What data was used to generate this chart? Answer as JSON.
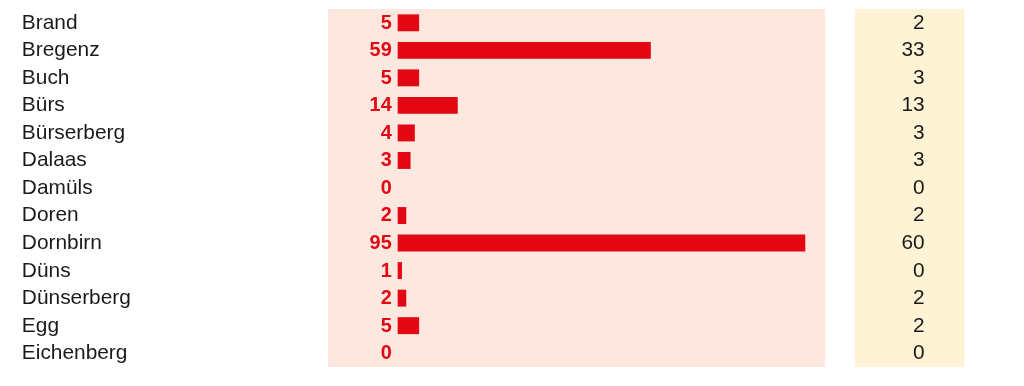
{
  "chart_data": {
    "type": "bar",
    "orientation": "horizontal",
    "data_labels": true,
    "categories": [
      "Brand",
      "Bregenz",
      "Buch",
      "Bürs",
      "Bürserberg",
      "Dalaas",
      "Damüls",
      "Doren",
      "Dornbirn",
      "Düns",
      "Dünserberg",
      "Egg",
      "Eichenberg"
    ],
    "series": [
      {
        "color": "#e30613",
        "values": [
          5,
          59,
          5,
          14,
          4,
          3,
          0,
          2,
          95,
          1,
          2,
          5,
          0
        ]
      }
    ],
    "annotations": [
      "2",
      "33",
      "3",
      "13",
      "3",
      "3",
      "0",
      "2",
      "60",
      "0",
      "2",
      "2",
      "0"
    ]
  }
}
